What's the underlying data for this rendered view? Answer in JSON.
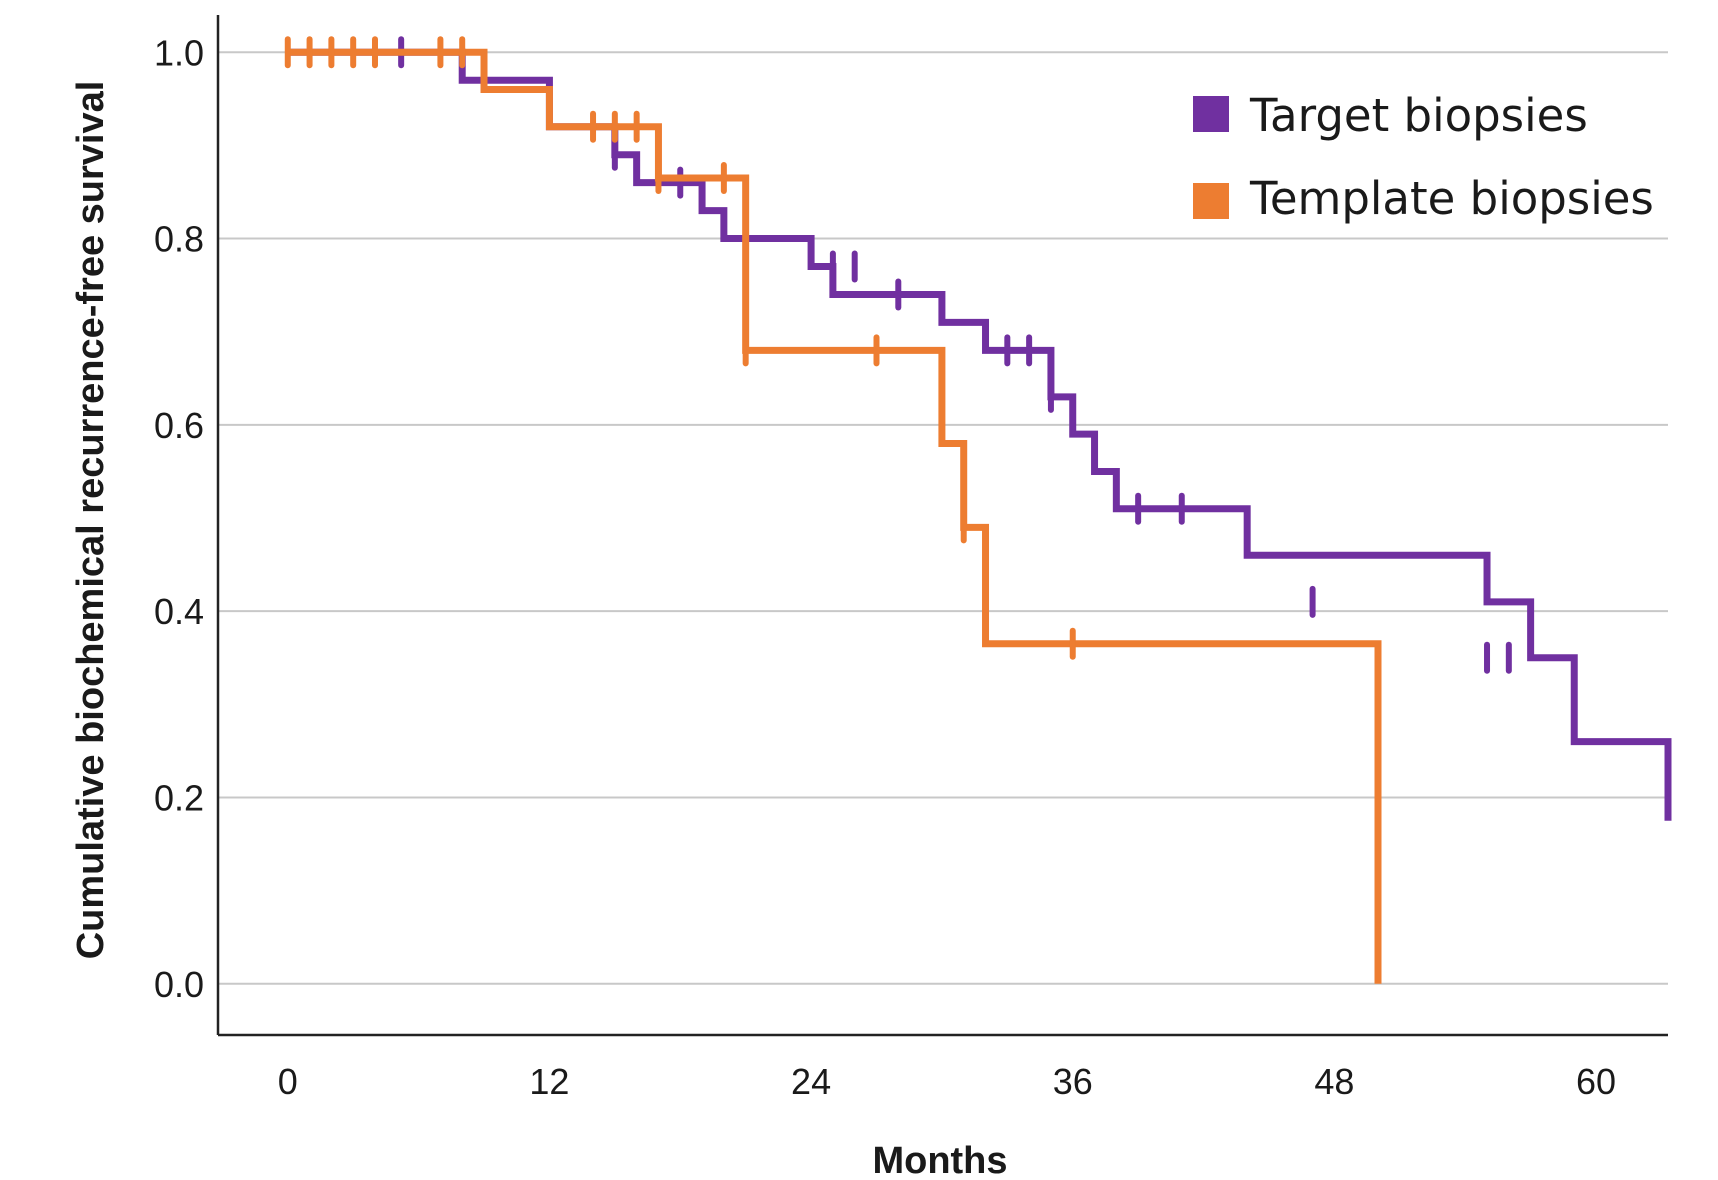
{
  "chart_data": {
    "type": "line",
    "step": "post",
    "xlabel": "Months",
    "ylabel": "Cumulative biochemical recurrence-free survival",
    "xlim": [
      -3.2,
      63.3
    ],
    "ylim": [
      -0.055,
      1.04
    ],
    "xticks": [
      0,
      12,
      24,
      36,
      48,
      60
    ],
    "yticks": [
      0.0,
      0.2,
      0.4,
      0.6,
      0.8,
      1.0
    ],
    "xtick_labels": [
      "0",
      "12",
      "24",
      "36",
      "48",
      "60"
    ],
    "ytick_labels": [
      "0.0",
      "0.2",
      "0.4",
      "0.6",
      "0.8",
      "1.0"
    ],
    "grid": "horizontal",
    "legend_position": "top-right",
    "series": [
      {
        "name": "Target biopsies",
        "color": "#7030a0",
        "x": [
          0,
          8,
          9,
          12,
          15,
          16,
          19,
          20,
          24,
          25,
          27,
          30,
          32,
          35,
          36,
          37,
          38,
          44,
          55,
          57,
          59,
          63.3
        ],
        "y": [
          1.0,
          0.97,
          0.97,
          0.92,
          0.89,
          0.86,
          0.83,
          0.8,
          0.77,
          0.74,
          0.74,
          0.71,
          0.68,
          0.63,
          0.59,
          0.55,
          0.51,
          0.46,
          0.41,
          0.35,
          0.26,
          0.175
        ],
        "censored_x": [
          5.2,
          15,
          18,
          25,
          26,
          28,
          33,
          34,
          35,
          39,
          41,
          47,
          55,
          56
        ],
        "censored_y": [
          1.0,
          0.89,
          0.86,
          0.77,
          0.77,
          0.74,
          0.68,
          0.68,
          0.63,
          0.51,
          0.51,
          0.41,
          0.35,
          0.35
        ]
      },
      {
        "name": "Template biopsies",
        "color": "#ed7d31",
        "x": [
          0,
          9,
          12,
          17,
          21,
          30,
          31,
          32,
          50,
          50
        ],
        "y": [
          1.0,
          0.96,
          0.92,
          0.865,
          0.68,
          0.58,
          0.49,
          0.365,
          0.365,
          0.0
        ],
        "censored_x": [
          0,
          1,
          2,
          3,
          4,
          7,
          8,
          14,
          15,
          16,
          17,
          20,
          21,
          27,
          31,
          36
        ],
        "censored_y": [
          1.0,
          1.0,
          1.0,
          1.0,
          1.0,
          1.0,
          1.0,
          0.92,
          0.92,
          0.92,
          0.865,
          0.865,
          0.68,
          0.68,
          0.49,
          0.365
        ]
      }
    ]
  }
}
